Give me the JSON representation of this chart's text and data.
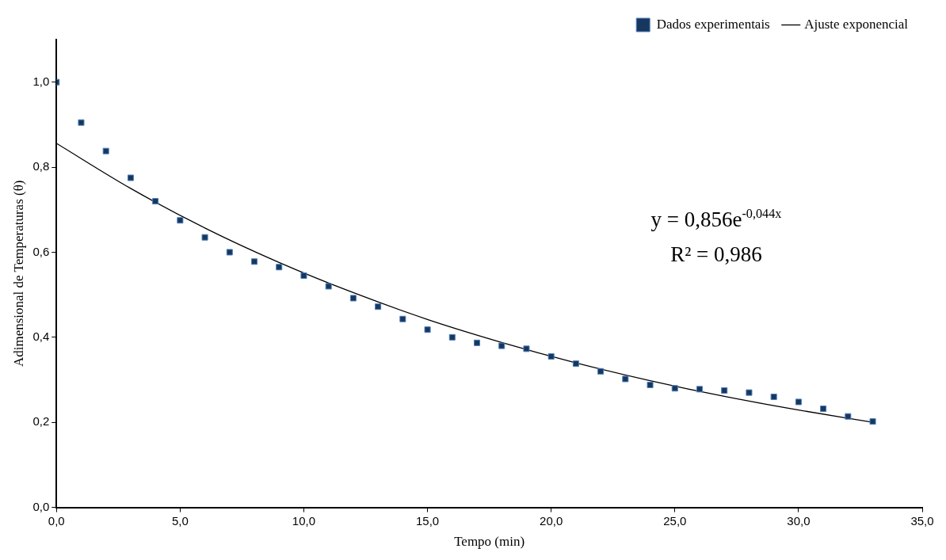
{
  "chart_data": {
    "type": "scatter",
    "xlabel": "Tempo (min)",
    "ylabel": "Adimensional de Temperaturas (θ)",
    "xlim": [
      0,
      35
    ],
    "xticks": [
      {
        "value": 0,
        "label": "0,0"
      },
      {
        "value": 5,
        "label": "5,0"
      },
      {
        "value": 10,
        "label": "10,0"
      },
      {
        "value": 15,
        "label": "15,0"
      },
      {
        "value": 20,
        "label": "20,0"
      },
      {
        "value": 25,
        "label": "25,0"
      },
      {
        "value": 30,
        "label": "30,0"
      },
      {
        "value": 35,
        "label": "35,0"
      }
    ],
    "ylim": [
      0,
      1.1
    ],
    "yticks": [
      {
        "value": 0,
        "label": "0,0"
      },
      {
        "value": 0.2,
        "label": "0,2"
      },
      {
        "value": 0.4,
        "label": "0,4"
      },
      {
        "value": 0.6,
        "label": "0,6"
      },
      {
        "value": 0.8,
        "label": "0,8"
      },
      {
        "value": 1,
        "label": "1,0"
      }
    ],
    "grid": false,
    "legend": "top right",
    "marker": "square",
    "series": [
      {
        "name": "Dados experimentais",
        "type": "scatter",
        "color": "#17375e",
        "x": [
          0,
          1,
          2,
          3,
          4,
          5,
          6,
          7,
          8,
          9,
          10,
          11,
          12,
          13,
          14,
          15,
          16,
          17,
          18,
          19,
          20,
          21,
          22,
          23,
          24,
          25,
          26,
          27,
          28,
          29,
          30,
          31,
          32,
          33
        ],
        "values": [
          1.0,
          0.905,
          0.838,
          0.775,
          0.72,
          0.675,
          0.635,
          0.6,
          0.578,
          0.565,
          0.545,
          0.52,
          0.492,
          0.472,
          0.443,
          0.418,
          0.4,
          0.387,
          0.38,
          0.373,
          0.355,
          0.338,
          0.32,
          0.302,
          0.288,
          0.28,
          0.278,
          0.275,
          0.27,
          0.26,
          0.248,
          0.232,
          0.214,
          0.202
        ]
      },
      {
        "name": "Ajuste exponencial",
        "type": "line",
        "color": "#000000",
        "marker": "none",
        "line_style": "solid",
        "x": [
          0,
          3,
          6,
          9,
          12,
          15,
          18,
          21,
          24,
          27,
          30,
          33
        ],
        "values": [
          0.856,
          0.75,
          0.657,
          0.576,
          0.505,
          0.442,
          0.388,
          0.34,
          0.298,
          0.261,
          0.229,
          0.2
        ]
      }
    ],
    "annotations": [
      "y = 0,856e$^{-0,044x}$",
      "R² = 0,986"
    ]
  }
}
